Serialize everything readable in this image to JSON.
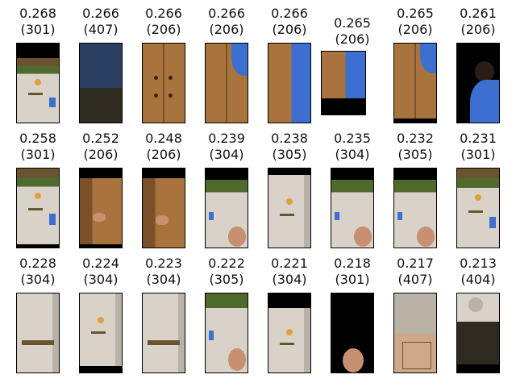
{
  "palette": {
    "black": "#000000",
    "fridge": "#d8d2c8",
    "fridge_shadow": "#b9b2a6",
    "shelf": "#6a5430",
    "plants": "#4e6a2c",
    "door_wood": "#a8733d",
    "door_dark": "#7a5128",
    "knob": "#3a2314",
    "shirt_blue": "#3c6fd0",
    "skin": "#c89070",
    "hair": "#2a1d18",
    "floor_dark": "#2f2a20",
    "wall_blue": "#2b3f62",
    "magnet_yellow": "#e0a040",
    "box_tan": "#cfa88a"
  },
  "results": [
    {
      "score": "0.268",
      "label": "(301)",
      "kind": "fridge-kitchen",
      "bands": [
        0.18,
        1.0
      ]
    },
    {
      "score": "0.266",
      "label": "(407)",
      "kind": "dark-room",
      "bands": [
        0.0,
        1.0
      ]
    },
    {
      "score": "0.266",
      "label": "(206)",
      "kind": "door-knobs",
      "bands": [
        0.0,
        1.0
      ]
    },
    {
      "score": "0.266",
      "label": "(206)",
      "kind": "door-person",
      "bands": [
        0.0,
        1.0
      ]
    },
    {
      "score": "0.266",
      "label": "(206)",
      "kind": "door-blue",
      "bands": [
        0.0,
        1.0
      ]
    },
    {
      "score": "0.265",
      "label": "(206)",
      "kind": "door-blue-wide",
      "bands": [
        0.0,
        0.72
      ]
    },
    {
      "score": "0.265",
      "label": "(206)",
      "kind": "door-person",
      "bands": [
        0.0,
        0.93
      ]
    },
    {
      "score": "0.261",
      "label": "(206)",
      "kind": "black-person",
      "bands": [
        0.0,
        1.0
      ]
    },
    {
      "score": "0.258",
      "label": "(301)",
      "kind": "fridge-kitchen",
      "bands": [
        0.0,
        0.94
      ]
    },
    {
      "score": "0.252",
      "label": "(206)",
      "kind": "door-hand",
      "bands": [
        0.12,
        0.94
      ]
    },
    {
      "score": "0.248",
      "label": "(206)",
      "kind": "door-hand",
      "bands": [
        0.12,
        1.0
      ]
    },
    {
      "score": "0.239",
      "label": "(304)",
      "kind": "kitchen-face",
      "bands": [
        0.14,
        1.0
      ]
    },
    {
      "score": "0.238",
      "label": "(305)",
      "kind": "fridge-magnets",
      "bands": [
        0.08,
        1.0
      ]
    },
    {
      "score": "0.235",
      "label": "(304)",
      "kind": "kitchen-face",
      "bands": [
        0.14,
        1.0
      ]
    },
    {
      "score": "0.232",
      "label": "(305)",
      "kind": "kitchen-face",
      "bands": [
        0.14,
        1.0
      ]
    },
    {
      "score": "0.231",
      "label": "(301)",
      "kind": "fridge-kitchen",
      "bands": [
        0.0,
        1.0
      ]
    },
    {
      "score": "0.228",
      "label": "(304)",
      "kind": "fridge-plain",
      "bands": [
        0.0,
        1.0
      ]
    },
    {
      "score": "0.224",
      "label": "(304)",
      "kind": "fridge-magnets",
      "bands": [
        0.0,
        0.9
      ]
    },
    {
      "score": "0.223",
      "label": "(304)",
      "kind": "fridge-plain",
      "bands": [
        0.0,
        1.0
      ]
    },
    {
      "score": "0.222",
      "label": "(305)",
      "kind": "kitchen-face",
      "bands": [
        0.0,
        1.0
      ]
    },
    {
      "score": "0.221",
      "label": "(304)",
      "kind": "fridge-magnets",
      "bands": [
        0.18,
        1.0
      ]
    },
    {
      "score": "0.218",
      "label": "(301)",
      "kind": "black-face",
      "bands": [
        0.0,
        1.0
      ]
    },
    {
      "score": "0.217",
      "label": "(407)",
      "kind": "room-box",
      "bands": [
        0.0,
        1.0
      ]
    },
    {
      "score": "0.213",
      "label": "(404)",
      "kind": "room-clock",
      "bands": [
        0.0,
        0.88
      ]
    }
  ]
}
